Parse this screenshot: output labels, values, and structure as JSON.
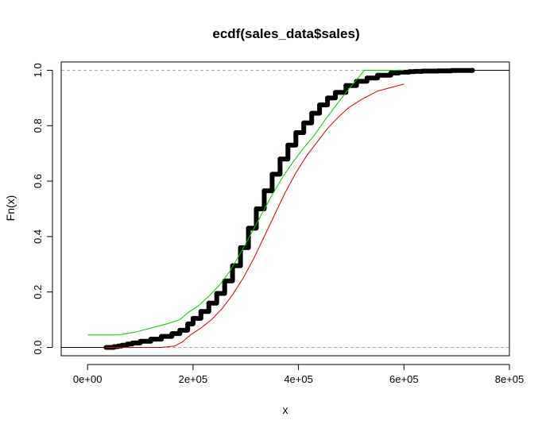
{
  "chart_data": {
    "type": "line",
    "title": "ecdf(sales_data$sales)",
    "xlabel": "x",
    "ylabel": "Fn(x)",
    "xlim": [
      -50000,
      800000
    ],
    "ylim": [
      -0.03,
      1.03
    ],
    "x_ticks": [
      0,
      200000,
      400000,
      600000,
      800000
    ],
    "x_tick_labels": [
      "0e+00",
      "2e+05",
      "4e+05",
      "6e+05",
      "8e+05"
    ],
    "y_ticks": [
      0.0,
      0.2,
      0.4,
      0.6,
      0.8,
      1.0
    ],
    "y_tick_labels": [
      "0.0",
      "0.2",
      "0.4",
      "0.6",
      "0.8",
      "1.0"
    ],
    "reference_lines": [
      0,
      1
    ],
    "grid": false,
    "legend": "none",
    "series": [
      {
        "color": "#000000",
        "style": "step-points",
        "x": [
          35000,
          50000,
          58000,
          65000,
          75000,
          85000,
          100000,
          120000,
          140000,
          160000,
          175000,
          190000,
          200000,
          215000,
          230000,
          245000,
          260000,
          275000,
          290000,
          305000,
          320000,
          335000,
          350000,
          365000,
          380000,
          395000,
          410000,
          425000,
          440000,
          455000,
          470000,
          490000,
          510000,
          530000,
          550000,
          575000,
          590000,
          610000,
          620000,
          635000,
          665000,
          690000,
          730000
        ],
        "y": [
          0.0,
          0.003,
          0.005,
          0.008,
          0.012,
          0.016,
          0.022,
          0.03,
          0.04,
          0.05,
          0.062,
          0.085,
          0.105,
          0.13,
          0.16,
          0.195,
          0.24,
          0.295,
          0.36,
          0.43,
          0.5,
          0.565,
          0.625,
          0.68,
          0.73,
          0.775,
          0.81,
          0.845,
          0.875,
          0.9,
          0.92,
          0.945,
          0.96,
          0.972,
          0.982,
          0.99,
          0.993,
          0.995,
          0.996,
          0.997,
          0.998,
          0.999,
          1.0
        ]
      },
      {
        "color": "#00cc00",
        "style": "line",
        "x": [
          0,
          60000,
          90000,
          120000,
          150000,
          175000,
          190000,
          210000,
          230000,
          250000,
          270000,
          290000,
          310000,
          330000,
          350000,
          370000,
          390000,
          410000,
          430000,
          450000,
          470000,
          490000,
          510000,
          525000,
          560000,
          600000
        ],
        "y": [
          0.045,
          0.045,
          0.055,
          0.07,
          0.085,
          0.1,
          0.125,
          0.15,
          0.185,
          0.225,
          0.275,
          0.34,
          0.41,
          0.48,
          0.55,
          0.615,
          0.67,
          0.72,
          0.765,
          0.82,
          0.87,
          0.92,
          0.965,
          1.0,
          1.0,
          1.0
        ]
      },
      {
        "color": "#cc0000",
        "style": "line",
        "x": [
          35000,
          140000,
          165000,
          180000,
          195000,
          215000,
          235000,
          255000,
          275000,
          295000,
          315000,
          335000,
          355000,
          375000,
          395000,
          415000,
          435000,
          455000,
          475000,
          495000,
          520000,
          550000,
          580000,
          600000
        ],
        "y": [
          0.0,
          0.0,
          0.005,
          0.02,
          0.045,
          0.07,
          0.1,
          0.14,
          0.19,
          0.25,
          0.32,
          0.4,
          0.48,
          0.56,
          0.63,
          0.69,
          0.74,
          0.79,
          0.83,
          0.865,
          0.895,
          0.925,
          0.94,
          0.95
        ]
      }
    ]
  }
}
